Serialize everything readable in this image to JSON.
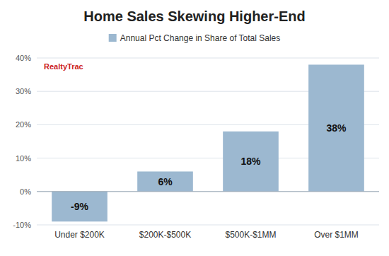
{
  "chart_data": {
    "type": "bar",
    "title": "Home Sales Skewing Higher-End",
    "subtitle": "Annual Pct Change in Share of Total Sales",
    "categories": [
      "Under $200K",
      "$200K-$500K",
      "$500K-$1MM",
      "Over $1MM"
    ],
    "values": [
      -9,
      6,
      18,
      38
    ],
    "value_labels": [
      "-9%",
      "6%",
      "18%",
      "38%"
    ],
    "data_labels": true,
    "color": "#9CB8D0",
    "ylim": [
      -10,
      40
    ],
    "yticks": [
      {
        "value": -10,
        "label": "-10%"
      },
      {
        "value": 0,
        "label": "0%"
      },
      {
        "value": 10,
        "label": "10%"
      },
      {
        "value": 20,
        "label": "20%"
      },
      {
        "value": 30,
        "label": "30%"
      },
      {
        "value": 40,
        "label": "40%"
      }
    ],
    "grid": true,
    "annotations": [
      {
        "text": "RealtyTrac",
        "color": "#cc2222"
      }
    ]
  }
}
